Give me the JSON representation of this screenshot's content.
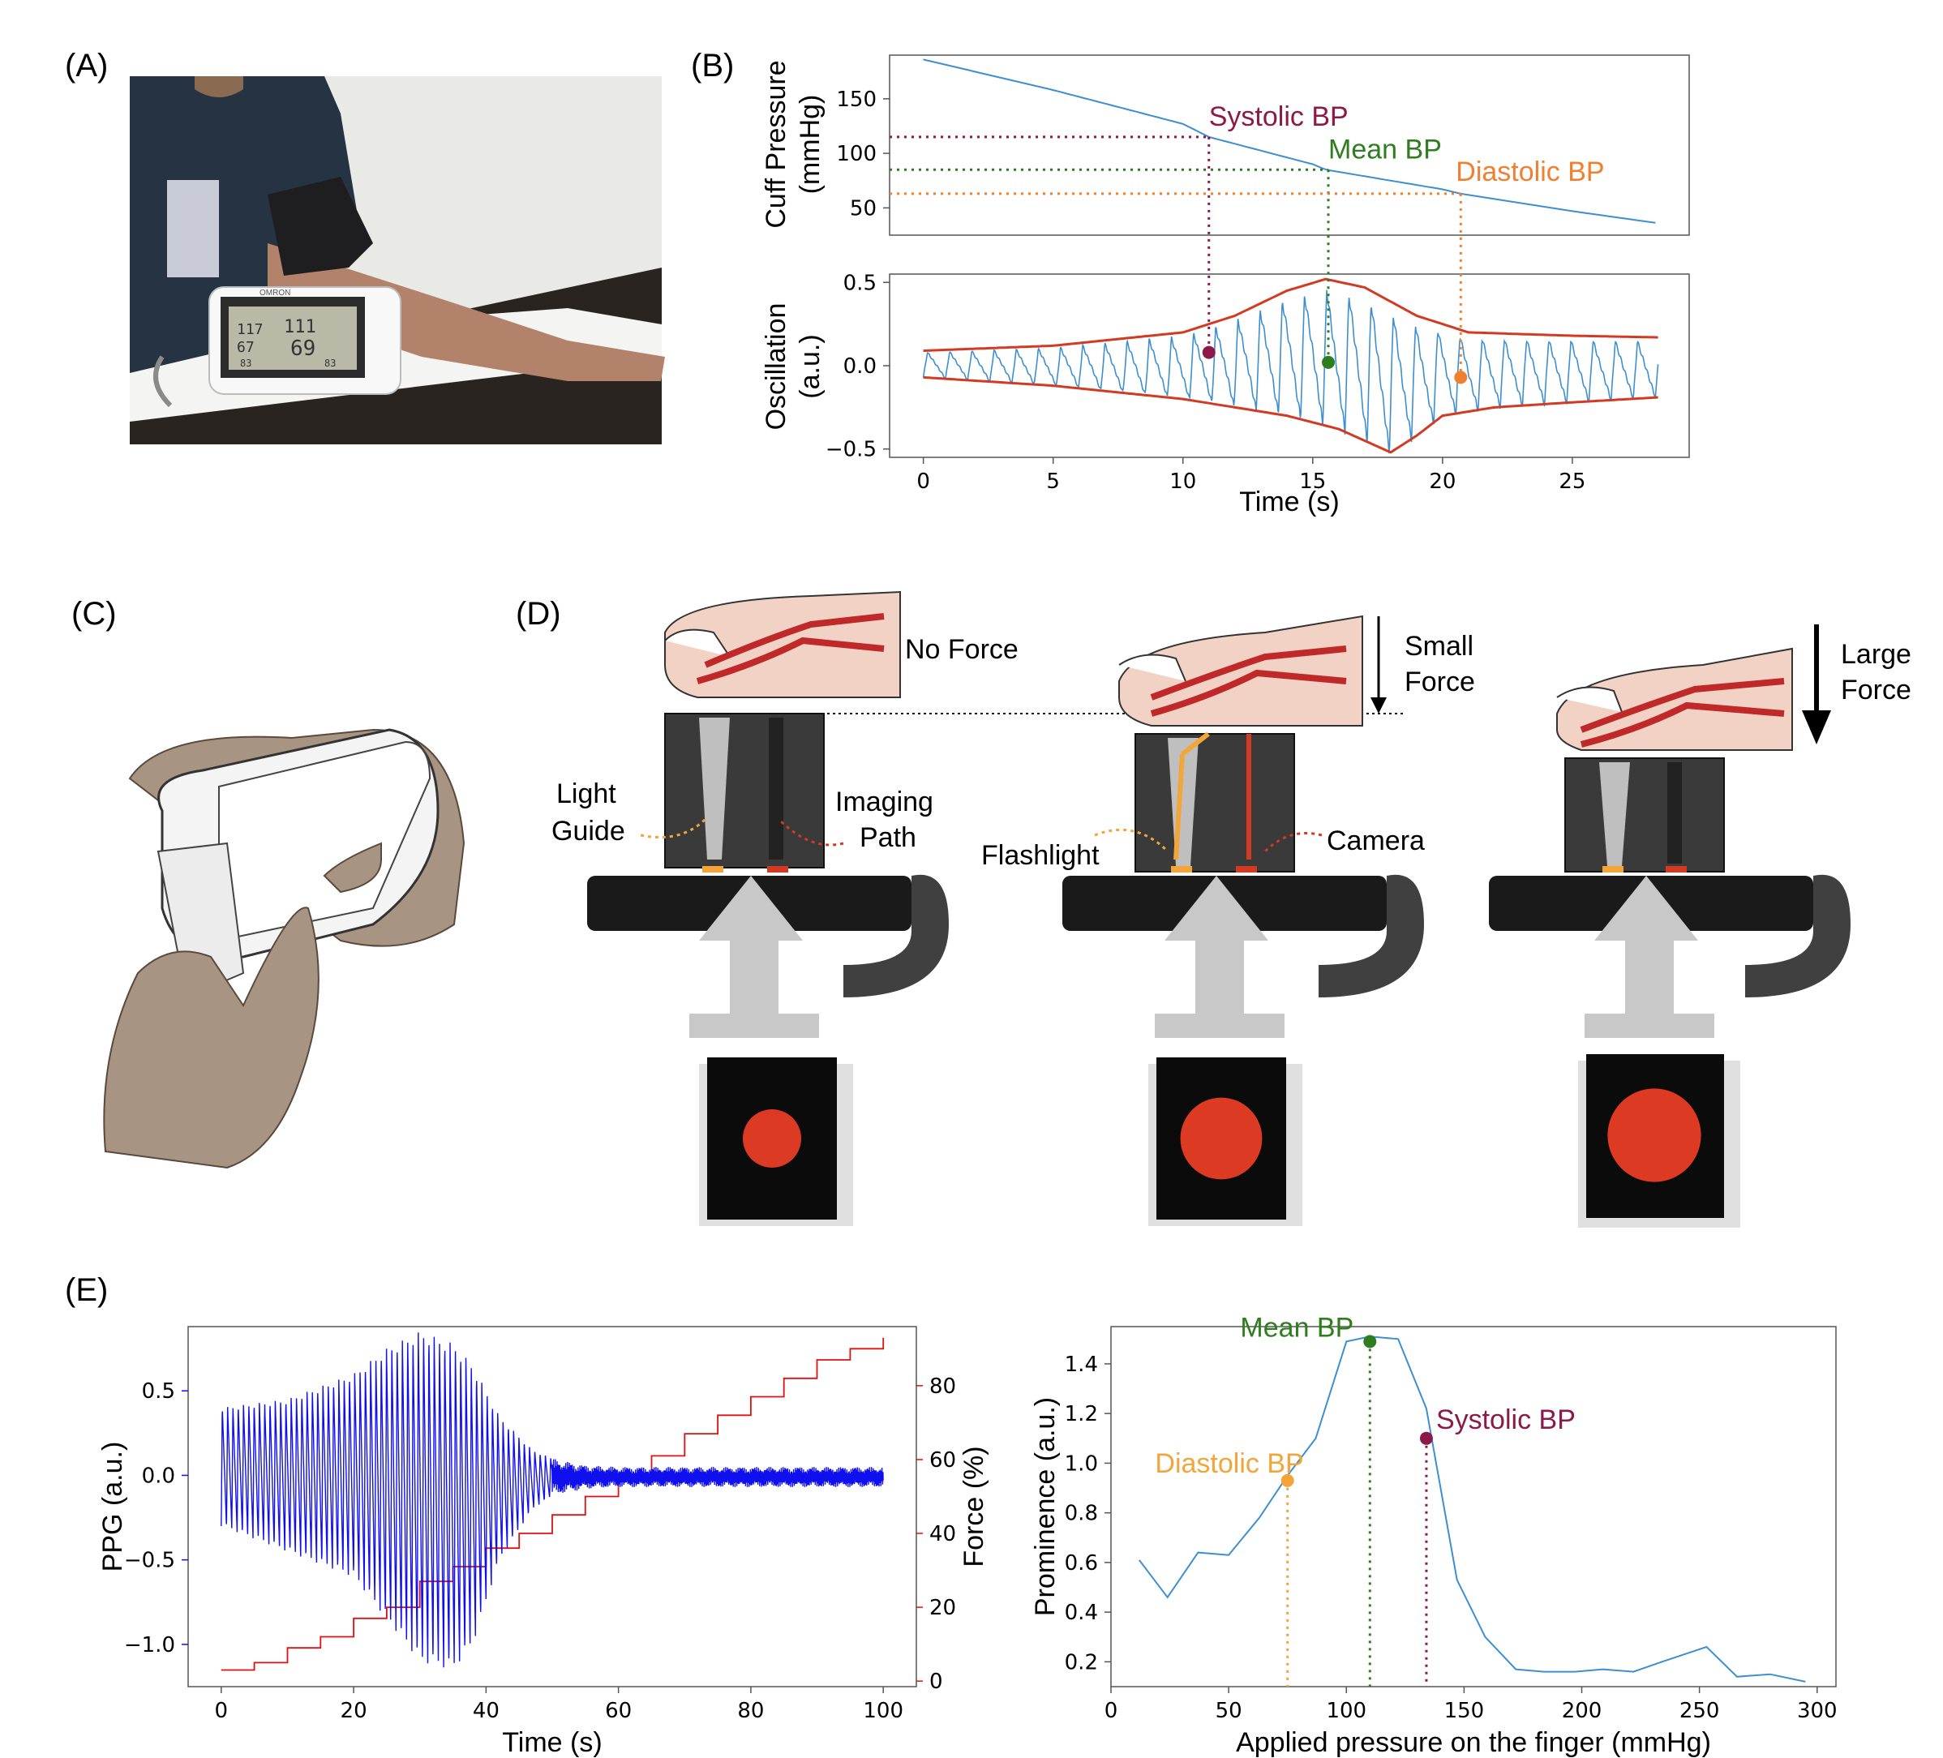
{
  "colors": {
    "systolic": "#8b1a4a",
    "mean": "#2e7d1e",
    "diastolic": "#f08030",
    "diastolic_e": "#f2a63a",
    "cuff_line": "#3d8fd1",
    "envelope": "#d23a22",
    "ppg": "#1010ee",
    "force": "#e01010",
    "prominence": "#3d8fd1"
  },
  "panels": {
    "A": "(A)",
    "B": "(B)",
    "C": "(C)",
    "D": "(D)",
    "E": "(E)"
  },
  "photoA": {
    "display_values": [
      "117",
      "111",
      "67",
      "69",
      "83",
      "83"
    ],
    "brand": "OMRON"
  },
  "diagramD": {
    "labels": {
      "no_force": "No Force",
      "small_force": [
        "Small",
        "Force"
      ],
      "large_force": [
        "Large",
        "Force"
      ],
      "light_guide": [
        "Light",
        "Guide"
      ],
      "imaging_path": [
        "Imaging",
        "Path"
      ],
      "flashlight": "Flashlight",
      "camera": "Camera"
    },
    "spot_levels": [
      0.5,
      0.7,
      0.8
    ]
  },
  "chart_data": [
    {
      "id": "B-top",
      "type": "line",
      "ylabel": [
        "Cuff Pressure",
        "(mmHg)"
      ],
      "yticks": [
        50,
        100,
        150
      ],
      "xlim": [
        -1.3,
        29.5
      ],
      "ylim": [
        25,
        190
      ],
      "series": [
        {
          "x": [
            0,
            5,
            10,
            11,
            15,
            15.5,
            20,
            20.7,
            25,
            28.3
          ],
          "values": [
            186,
            158,
            127,
            115,
            90,
            85,
            67,
            63,
            47,
            36
          ]
        }
      ],
      "markers": [
        {
          "name": "Systolic BP",
          "x": 11,
          "y": 115,
          "osc": 0.08
        },
        {
          "name": "Mean BP",
          "x": 15.6,
          "y": 85,
          "osc": 0.02
        },
        {
          "name": "Diastolic BP",
          "x": 20.7,
          "y": 63,
          "osc": -0.07
        }
      ]
    },
    {
      "id": "B-bottom",
      "type": "line",
      "xlabel": "Time (s)",
      "ylabel": [
        "Oscillation",
        "(a.u.)"
      ],
      "xticks": [
        0,
        5,
        10,
        15,
        20,
        25
      ],
      "yticks": [
        0.5,
        0.0,
        -0.5
      ],
      "ytick_labels": [
        "0.5",
        "0.0",
        "−0.5"
      ],
      "xlim": [
        -1.3,
        29.5
      ],
      "ylim": [
        -0.55,
        0.55
      ],
      "beats_per_second": 1.17,
      "upper_envelope": {
        "x": [
          0,
          5,
          10,
          12,
          14,
          15.5,
          17,
          19,
          21,
          25,
          28.3
        ],
        "y": [
          0.09,
          0.12,
          0.2,
          0.3,
          0.45,
          0.52,
          0.47,
          0.3,
          0.2,
          0.18,
          0.17
        ]
      },
      "lower_envelope": {
        "x": [
          0,
          5,
          10,
          12,
          14,
          16,
          18,
          19,
          20,
          22,
          25,
          28.3
        ],
        "y": [
          -0.07,
          -0.12,
          -0.2,
          -0.25,
          -0.3,
          -0.38,
          -0.52,
          -0.42,
          -0.3,
          -0.25,
          -0.22,
          -0.19
        ]
      }
    },
    {
      "id": "E-left",
      "type": "line",
      "xlabel": "Time (s)",
      "ylabel_left": "PPG (a.u.)",
      "ylabel_right": "Force (%)",
      "xticks": [
        0,
        20,
        40,
        60,
        80,
        100
      ],
      "yticks_left": [
        0.5,
        0.0,
        -0.5,
        -1.0
      ],
      "ytick_labels_left": [
        "0.5",
        "0.0",
        "−0.5",
        "−1.0"
      ],
      "yticks_right": [
        0,
        20,
        40,
        60,
        80
      ],
      "xlim": [
        -5,
        105
      ],
      "ylim_left": [
        -1.25,
        0.88
      ],
      "ylim_right": [
        -1.5,
        96
      ],
      "ppg_beats_per_second": 1.25,
      "ppg_amplitude": {
        "x": [
          0,
          10,
          20,
          25,
          30,
          35,
          38,
          42,
          47,
          50,
          55,
          60,
          100
        ],
        "top": [
          0.4,
          0.45,
          0.6,
          0.75,
          0.85,
          0.78,
          0.65,
          0.35,
          0.15,
          0.1,
          0.06,
          0.05,
          0.05
        ],
        "bottom": [
          -0.3,
          -0.45,
          -0.6,
          -0.85,
          -1.1,
          -1.15,
          -1.0,
          -0.5,
          -0.2,
          -0.12,
          -0.08,
          -0.07,
          -0.07
        ]
      },
      "force_steps": {
        "x": [
          0,
          5,
          10,
          15,
          20,
          25,
          30,
          35,
          40,
          45,
          50,
          55,
          60,
          65,
          70,
          75,
          80,
          85,
          90,
          95,
          100
        ],
        "values": [
          3,
          5,
          9,
          12,
          17,
          20,
          27,
          31,
          36,
          40,
          45,
          50,
          56,
          61,
          67,
          72,
          77,
          82,
          87,
          90,
          93
        ]
      }
    },
    {
      "id": "E-right",
      "type": "line",
      "xlabel": "Applied pressure on the finger (mmHg)",
      "ylabel": "Prominence (a.u.)",
      "xticks": [
        0,
        50,
        100,
        150,
        200,
        250,
        300
      ],
      "yticks": [
        0.2,
        0.4,
        0.6,
        0.8,
        1.0,
        1.2,
        1.4
      ],
      "ytick_labels": [
        "0.2",
        "0.4",
        "0.6",
        "0.8",
        "1.0",
        "1.2",
        "1.4"
      ],
      "xlim": [
        0,
        308
      ],
      "ylim": [
        0.1,
        1.55
      ],
      "series": [
        {
          "x": [
            12,
            24,
            37,
            50,
            63,
            75,
            87,
            100,
            110,
            122,
            134,
            147,
            159,
            172,
            184,
            197,
            209,
            222,
            234,
            253,
            266,
            280,
            295
          ],
          "values": [
            0.61,
            0.46,
            0.64,
            0.63,
            0.78,
            0.95,
            1.1,
            1.49,
            1.51,
            1.5,
            1.22,
            0.53,
            0.3,
            0.17,
            0.16,
            0.16,
            0.17,
            0.16,
            0.2,
            0.26,
            0.14,
            0.15,
            0.12
          ]
        }
      ],
      "markers": [
        {
          "name": "Diastolic BP",
          "x": 75,
          "y": 0.93
        },
        {
          "name": "Mean BP",
          "x": 110,
          "y": 1.49
        },
        {
          "name": "Systolic BP",
          "x": 134,
          "y": 1.1
        }
      ]
    }
  ]
}
